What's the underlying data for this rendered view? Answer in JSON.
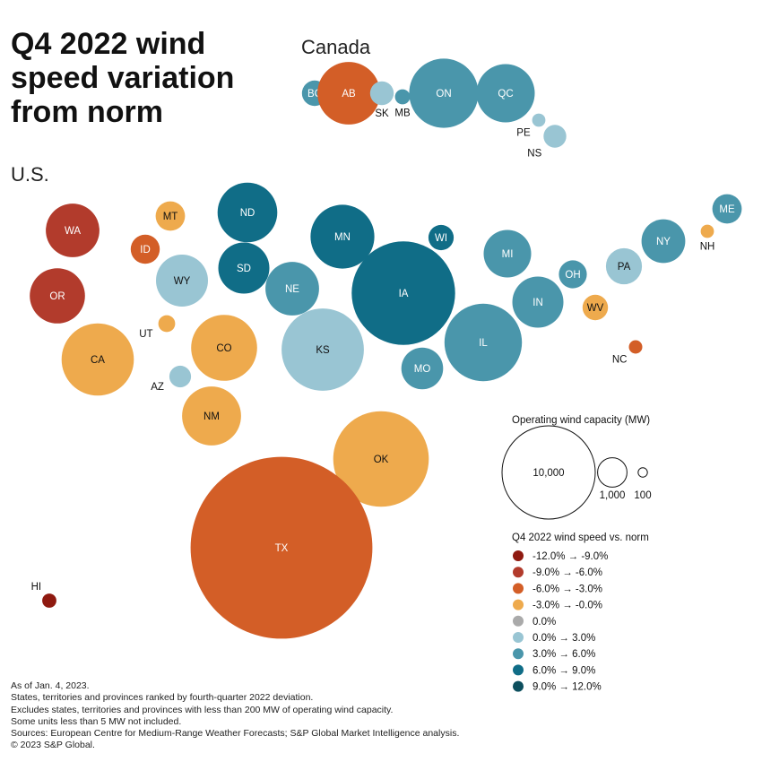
{
  "title_lines": [
    "Q4 2022 wind",
    "speed variation",
    "from norm"
  ],
  "regions": {
    "canada": "Canada",
    "us": "U.S."
  },
  "colors": {
    "-12.0% → -9.0%": "#8f1a10",
    "-9.0% → -6.0%": "#b23b2c",
    "-6.0% → -3.0%": "#d35e27",
    "-3.0% → -0.0%": "#eeaa4d",
    "0.0%": "#aaaaaa",
    "0.0% → 3.0%": "#99c5d3",
    "3.0% → 6.0%": "#4a96ab",
    "6.0% → 9.0%": "#106d87",
    "9.0% → 12.0%": "#0d4f5e"
  },
  "chart_data": {
    "type": "bubble",
    "title": "Q4 2022 wind speed variation from norm",
    "size_measure": "Operating wind capacity (MW)",
    "color_measure": "Q4 2022 wind speed vs. norm",
    "groups": {
      "Canada": [
        {
          "id": "BC",
          "bin": "3.0% → 6.0%",
          "mw": 750
        },
        {
          "id": "AB",
          "bin": "-6.0% → -3.0%",
          "mw": 4500
        },
        {
          "id": "SK",
          "bin": "0.0% → 3.0%",
          "mw": 640
        },
        {
          "id": "MB",
          "bin": "3.0% → 6.0%",
          "mw": 260
        },
        {
          "id": "ON",
          "bin": "3.0% → 6.0%",
          "mw": 5500
        },
        {
          "id": "QC",
          "bin": "3.0% → 6.0%",
          "mw": 3900
        },
        {
          "id": "PE",
          "bin": "0.0% → 3.0%",
          "mw": 200
        },
        {
          "id": "NS",
          "bin": "0.0% → 3.0%",
          "mw": 600
        }
      ],
      "U.S.": [
        {
          "id": "WA",
          "bin": "-9.0% → -6.0%",
          "mw": 3300
        },
        {
          "id": "MT",
          "bin": "-3.0% → -0.0%",
          "mw": 1000
        },
        {
          "id": "ND",
          "bin": "6.0% → 9.0%",
          "mw": 4100
        },
        {
          "id": "MN",
          "bin": "6.0% → 9.0%",
          "mw": 4700
        },
        {
          "id": "WI",
          "bin": "6.0% → 9.0%",
          "mw": 740
        },
        {
          "id": "ME",
          "bin": "3.0% → 6.0%",
          "mw": 1000
        },
        {
          "id": "ID",
          "bin": "-6.0% → -3.0%",
          "mw": 970
        },
        {
          "id": "MI",
          "bin": "3.0% → 6.0%",
          "mw": 2600
        },
        {
          "id": "NY",
          "bin": "3.0% → 6.0%",
          "mw": 2200
        },
        {
          "id": "NH",
          "bin": "-3.0% → -0.0%",
          "mw": 200
        },
        {
          "id": "WY",
          "bin": "0.0% → 3.0%",
          "mw": 3100
        },
        {
          "id": "SD",
          "bin": "6.0% → 9.0%",
          "mw": 3000
        },
        {
          "id": "NE",
          "bin": "3.0% → 6.0%",
          "mw": 3300
        },
        {
          "id": "IA",
          "bin": "6.0% → 9.0%",
          "mw": 12300
        },
        {
          "id": "OH",
          "bin": "3.0% → 6.0%",
          "mw": 900
        },
        {
          "id": "PA",
          "bin": "0.0% → 3.0%",
          "mw": 1500
        },
        {
          "id": "OR",
          "bin": "-9.0% → -6.0%",
          "mw": 3500
        },
        {
          "id": "IN",
          "bin": "3.0% → 6.0%",
          "mw": 3000
        },
        {
          "id": "WV",
          "bin": "-3.0% → -0.0%",
          "mw": 750
        },
        {
          "id": "UT",
          "bin": "-3.0% → -0.0%",
          "mw": 330
        },
        {
          "id": "CO",
          "bin": "-3.0% → -0.0%",
          "mw": 5000
        },
        {
          "id": "KS",
          "bin": "0.0% → 3.0%",
          "mw": 7800
        },
        {
          "id": "IL",
          "bin": "3.0% → 6.0%",
          "mw": 6900
        },
        {
          "id": "CA",
          "bin": "-3.0% → -0.0%",
          "mw": 6000
        },
        {
          "id": "NC",
          "bin": "-6.0% → -3.0%",
          "mw": 210
        },
        {
          "id": "AZ",
          "bin": "0.0% → 3.0%",
          "mw": 540
        },
        {
          "id": "MO",
          "bin": "3.0% → 6.0%",
          "mw": 2000
        },
        {
          "id": "NM",
          "bin": "-3.0% → -0.0%",
          "mw": 4000
        },
        {
          "id": "OK",
          "bin": "-3.0% → -0.0%",
          "mw": 10500
        },
        {
          "id": "TX",
          "bin": "-6.0% → -3.0%",
          "mw": 38000
        },
        {
          "id": "HI",
          "bin": "-12.0% → -9.0%",
          "mw": 230
        }
      ]
    },
    "size_legend": {
      "title": "Operating wind capacity (MW)",
      "values": [
        10000,
        1000,
        100
      ],
      "labels": [
        "10,000",
        "1,000",
        "100"
      ]
    },
    "color_legend": {
      "title": "Q4 2022 wind speed vs. norm",
      "items": [
        "-12.0% → -9.0%",
        "-9.0% → -6.0%",
        "-6.0% → -3.0%",
        "-3.0% → -0.0%",
        "0.0%",
        "0.0% → 3.0%",
        "3.0% → 6.0%",
        "6.0% → 9.0%",
        "9.0% → 12.0%"
      ]
    }
  },
  "footnotes": [
    "As of Jan. 4, 2023.",
    "States, territories and provinces ranked by fourth-quarter 2022 deviation.",
    "Excludes states, territories and provinces with less than 200 MW of operating wind capacity.",
    "Some units less than 5 MW not included.",
    "Sources: European Centre for Medium-Range Weather Forecasts; S&P Global Market Intelligence analysis.",
    "© 2023 S&P Global."
  ]
}
